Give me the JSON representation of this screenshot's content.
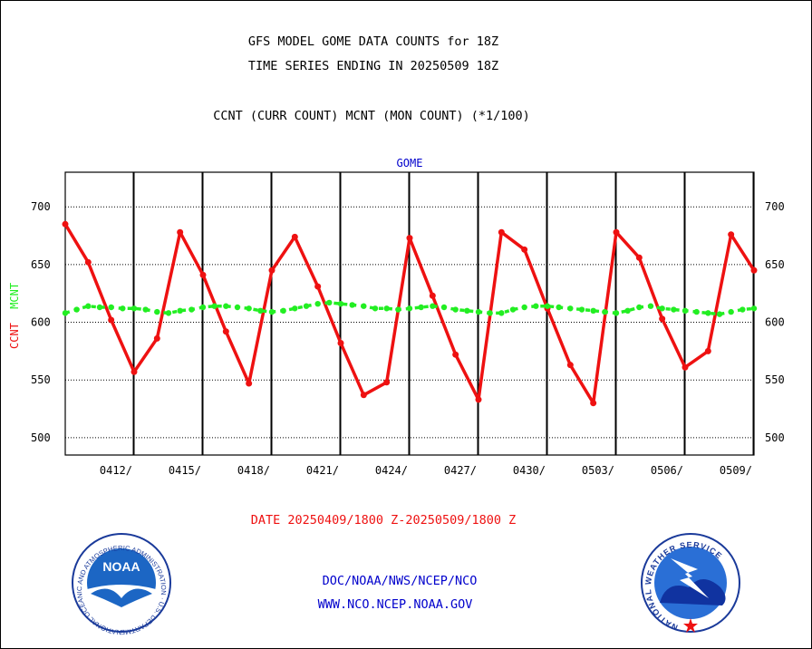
{
  "header": {
    "title_line1": "GFS MODEL GOME DATA COUNTS for 18Z",
    "title_line2": "TIME SERIES ENDING IN 20250509 18Z",
    "subtitle": "CCNT (CURR COUNT) MCNT (MON COUNT) (*1/100)"
  },
  "footer": {
    "date_range": "DATE 20250409/1800 Z-20250509/1800 Z",
    "org_path": "DOC/NOAA/NWS/NCEP/NCO",
    "website": "WWW.NCO.NCEP.NOAA.GOV",
    "noaa_logo_text": "NOAA",
    "noaa_ring_text": "NATIONAL OCEANIC AND ATMOSPHERIC ADMINISTRATION · U.S. DEPARTMENT OF COMMERCE ·",
    "nws_ring_text": "NATIONAL WEATHER SERVICE"
  },
  "colors": {
    "ccnt": "#ee1111",
    "mcnt": "#22ee22",
    "title": "#000000",
    "panel_label": "#0000cc",
    "date_label": "#ee1111",
    "link": "#0000cc"
  },
  "chart_data": {
    "type": "line",
    "title": "GOME",
    "ylabel_left": [
      "CCNT",
      "MCNT"
    ],
    "ylim": [
      485,
      730
    ],
    "yticks": [
      500,
      550,
      600,
      650,
      700
    ],
    "xlim": [
      0,
      30
    ],
    "xticks": [
      {
        "pos": 3,
        "label": "0412/"
      },
      {
        "pos": 6,
        "label": "0415/"
      },
      {
        "pos": 9,
        "label": "0418/"
      },
      {
        "pos": 12,
        "label": "0421/"
      },
      {
        "pos": 15,
        "label": "0424/"
      },
      {
        "pos": 18,
        "label": "0427/"
      },
      {
        "pos": 21,
        "label": "0430/"
      },
      {
        "pos": 24,
        "label": "0503/"
      },
      {
        "pos": 27,
        "label": "0506/"
      },
      {
        "pos": 30,
        "label": "0509/"
      }
    ],
    "grid": true,
    "series": [
      {
        "name": "CCNT",
        "x": [
          0,
          1,
          2,
          3,
          4,
          5,
          6,
          7,
          8,
          9,
          10,
          11,
          12,
          13,
          14,
          15,
          16,
          17,
          18,
          19,
          20,
          21,
          22,
          23,
          24,
          25,
          26,
          27,
          28,
          29,
          30
        ],
        "values": [
          685,
          652,
          602,
          557,
          586,
          678,
          641,
          592,
          547,
          645,
          674,
          631,
          582,
          537,
          548,
          673,
          623,
          572,
          533,
          678,
          663,
          612,
          563,
          530,
          678,
          656,
          603,
          561,
          575,
          676,
          645
        ]
      },
      {
        "name": "MCNT",
        "x": [
          0,
          0.5,
          1,
          1.5,
          2,
          2.5,
          3,
          3.5,
          4,
          4.5,
          5,
          5.5,
          6,
          6.5,
          7,
          7.5,
          8,
          8.5,
          9,
          9.5,
          10,
          10.5,
          11,
          11.5,
          12,
          12.5,
          13,
          13.5,
          14,
          14.5,
          15,
          15.5,
          16,
          16.5,
          17,
          17.5,
          18,
          18.5,
          19,
          19.5,
          20,
          20.5,
          21,
          21.5,
          22,
          22.5,
          23,
          23.5,
          24,
          24.5,
          25,
          25.5,
          26,
          26.5,
          27,
          27.5,
          28,
          28.5,
          29,
          29.5,
          30
        ],
        "values": [
          608,
          611,
          614,
          613,
          613,
          612,
          612,
          611,
          609,
          608,
          610,
          611,
          613,
          614,
          614,
          613,
          612,
          610,
          609,
          610,
          612,
          614,
          616,
          617,
          616,
          615,
          614,
          612,
          612,
          611,
          612,
          613,
          614,
          613,
          611,
          610,
          609,
          608,
          608,
          611,
          613,
          614,
          614,
          613,
          612,
          611,
          610,
          609,
          608,
          610,
          613,
          614,
          612,
          611,
          610,
          609,
          608,
          607,
          609,
          611,
          612
        ]
      }
    ]
  }
}
